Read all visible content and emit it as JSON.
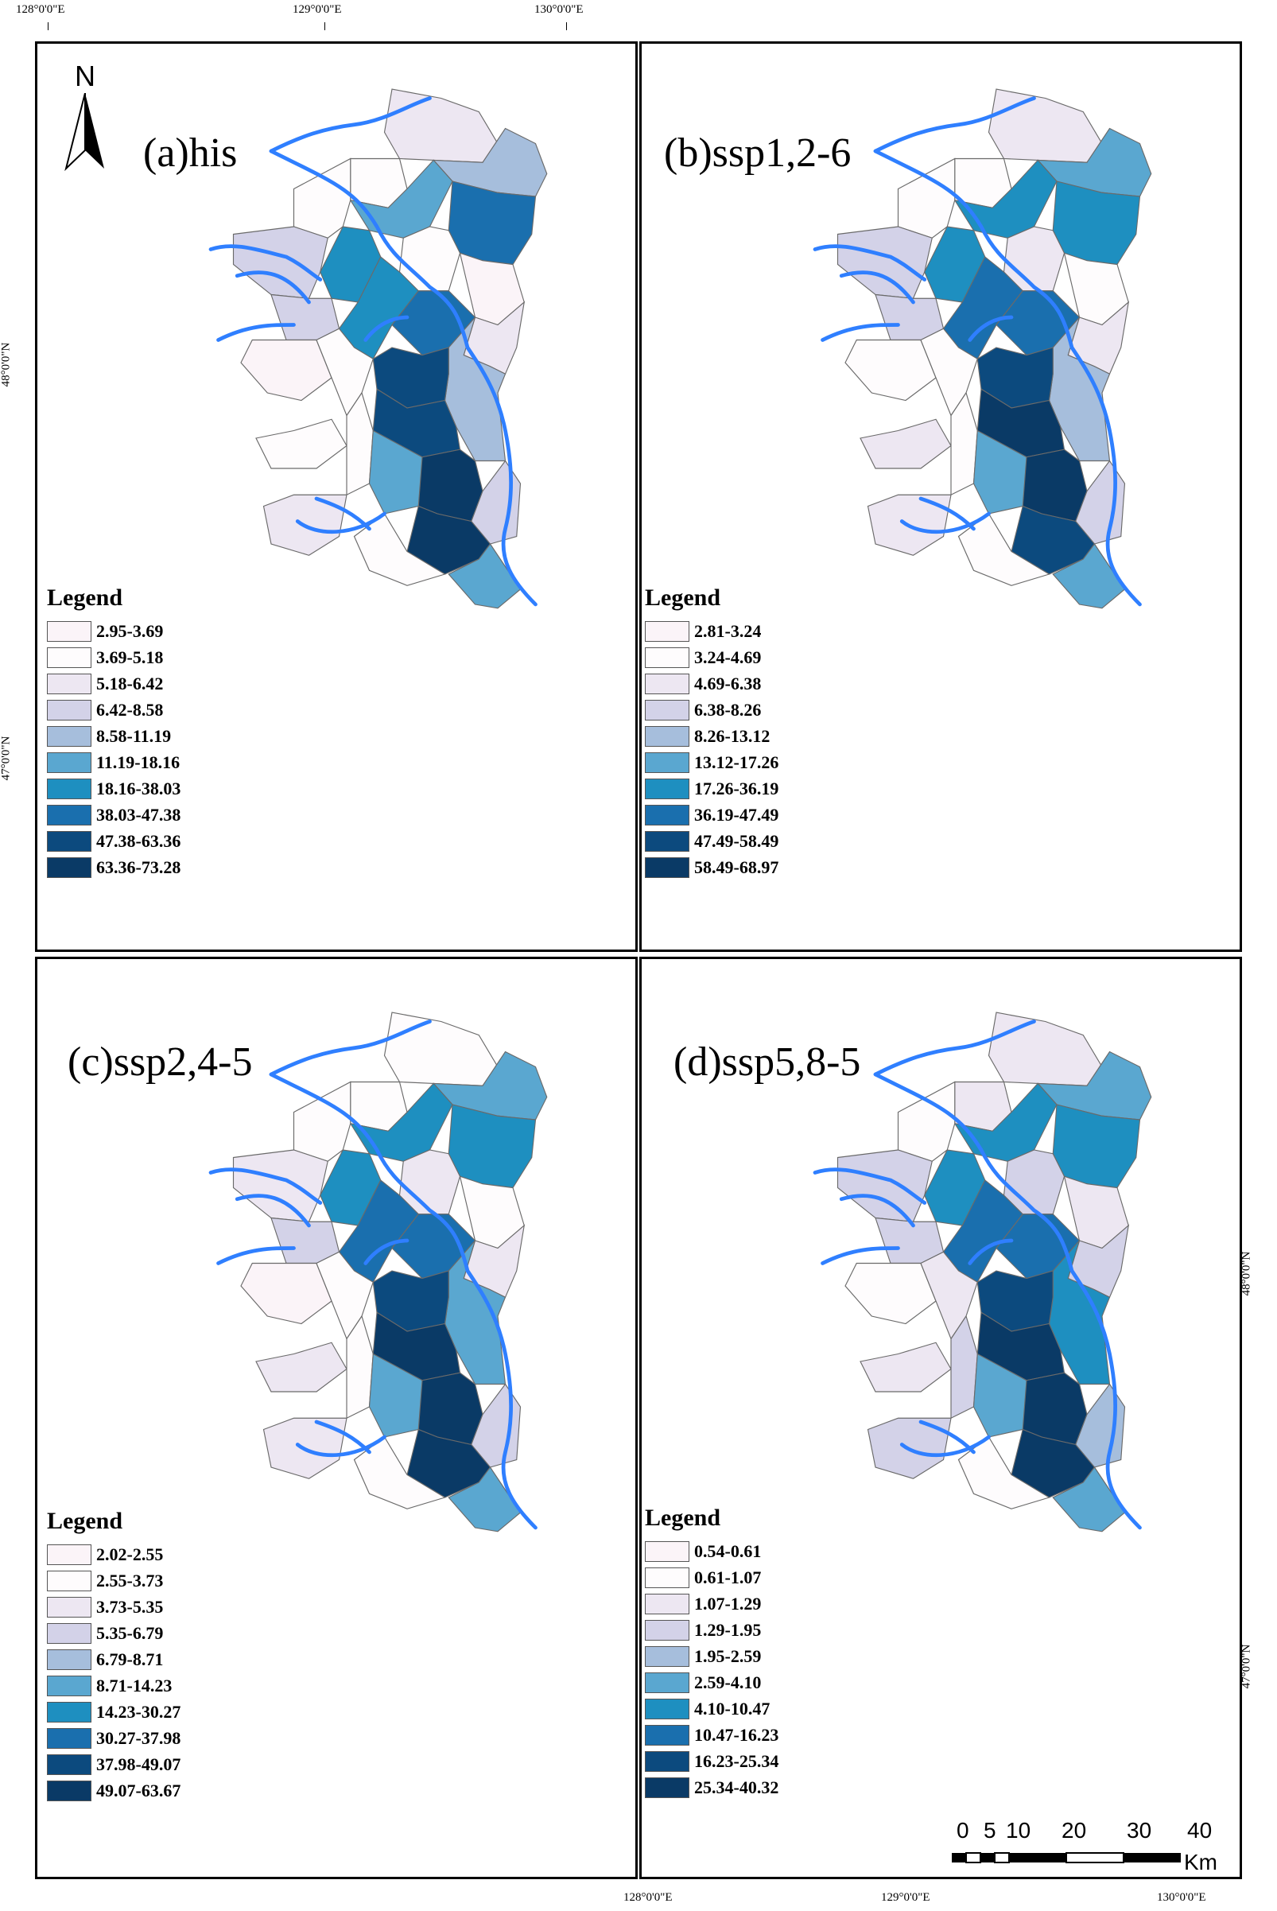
{
  "coordinates": {
    "top_labels": [
      "128°0'0\"E",
      "129°0'0\"E",
      "130°0'0\"E"
    ],
    "bottom_labels": [
      "128°0'0\"E",
      "129°0'0\"E",
      "130°0'0\"E"
    ],
    "left_labels": [
      "48°0'0\"N",
      "47°0'0\"N"
    ],
    "right_labels": [
      "48°0'0\"N",
      "47°0'0\"N"
    ]
  },
  "north_arrow": {
    "label": "N"
  },
  "panels": [
    {
      "title": "(a)his",
      "legend_title": "Legend",
      "legend": [
        "2.95-3.69",
        "3.69-5.18",
        "5.18-6.42",
        "6.42-8.58",
        "8.58-11.19",
        "11.19-18.16",
        "18.16-38.03",
        "38.03-47.38",
        "47.38-63.36",
        "63.36-73.28"
      ],
      "classes": [
        2,
        1,
        4,
        5,
        7,
        1,
        3,
        6,
        1,
        0,
        3,
        6,
        7,
        2,
        0,
        1,
        4,
        8,
        8,
        1,
        1,
        5,
        9,
        3,
        2,
        9,
        1,
        5
      ]
    },
    {
      "title": "(b)ssp1,2-6",
      "legend_title": "Legend",
      "legend": [
        "2.81-3.24",
        "3.24-4.69",
        "4.69-6.38",
        "6.38-8.26",
        "8.26-13.12",
        "13.12-17.26",
        "17.26-36.19",
        "36.19-47.49",
        "47.49-58.49",
        "58.49-68.97"
      ],
      "classes": [
        2,
        1,
        5,
        6,
        6,
        1,
        3,
        6,
        2,
        1,
        3,
        7,
        7,
        2,
        1,
        1,
        4,
        8,
        9,
        2,
        1,
        5,
        9,
        3,
        2,
        8,
        1,
        5
      ]
    },
    {
      "title": "(c)ssp2,4-5",
      "legend_title": "Legend",
      "legend": [
        "2.02-2.55",
        "2.55-3.73",
        "3.73-5.35",
        "5.35-6.79",
        "6.79-8.71",
        "8.71-14.23",
        "14.23-30.27",
        "30.27-37.98",
        "37.98-49.07",
        "49.07-63.67"
      ],
      "classes": [
        1,
        1,
        5,
        6,
        6,
        1,
        2,
        6,
        2,
        1,
        3,
        7,
        7,
        2,
        0,
        1,
        5,
        8,
        9,
        2,
        1,
        5,
        9,
        3,
        2,
        9,
        1,
        5
      ]
    },
    {
      "title": "(d)ssp5,8-5",
      "legend_title": "Legend",
      "legend": [
        "0.54-0.61",
        "0.61-1.07",
        "1.07-1.29",
        "1.29-1.95",
        "1.95-2.59",
        "2.59-4.10",
        "4.10-10.47",
        "10.47-16.23",
        "16.23-25.34",
        "25.34-40.32"
      ],
      "classes": [
        2,
        2,
        5,
        6,
        6,
        1,
        3,
        6,
        3,
        2,
        3,
        7,
        7,
        3,
        1,
        2,
        6,
        8,
        9,
        2,
        3,
        5,
        9,
        4,
        3,
        9,
        1,
        5
      ]
    }
  ],
  "palette": [
    "#fbf4f8",
    "#fefcfd",
    "#ede7f2",
    "#d3d2e8",
    "#a6bedc",
    "#5aa7d0",
    "#1e8fc0",
    "#1a6fae",
    "#0c4a7e",
    "#0a3a66"
  ],
  "river_color": "#2f7fff",
  "scale_bar": {
    "labels": [
      "0",
      "5",
      "10",
      "20",
      "30",
      "40"
    ],
    "unit": "Km"
  }
}
